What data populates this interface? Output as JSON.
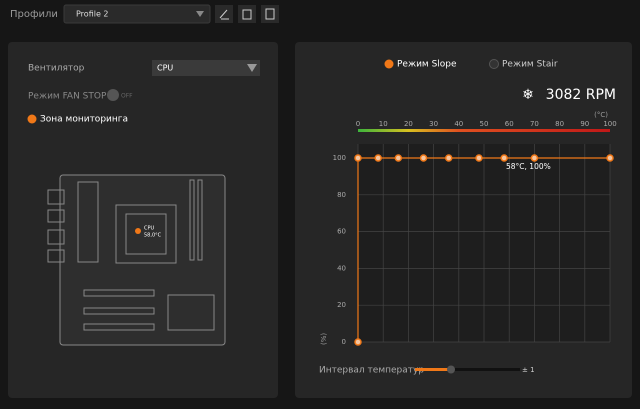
{
  "header": {
    "label": "Профили",
    "profile": "Profile 2"
  },
  "left_panel": {
    "fan_label": "Вентилятор",
    "fan_value": "CPU",
    "fan_stop_label": "Режим FAN STOP",
    "fan_stop_state": "OFF",
    "monitoring_zone": "Зона мониторинга",
    "board": {
      "sensor_label": "CPU",
      "sensor_temp": "58,0°C"
    }
  },
  "right_panel": {
    "modes": [
      "Режим Slope",
      "Режим Stair"
    ],
    "rpm": "3082 RPM",
    "chart": {
      "type": "line",
      "x_unit": "(°C)",
      "y_unit": "(%)",
      "x": [
        0,
        0,
        8,
        16,
        26,
        36,
        48,
        58,
        70,
        100
      ],
      "series": [
        {
          "color": "#f07818",
          "values": [
            0,
            100,
            100,
            100,
            100,
            100,
            100,
            100,
            100,
            100
          ]
        }
      ],
      "xlim": [
        0,
        100
      ],
      "ylim": [
        0,
        100
      ],
      "xticks": [
        0,
        10,
        20,
        30,
        40,
        50,
        60,
        70,
        80,
        90,
        100
      ],
      "yticks": [
        0,
        20,
        40,
        60,
        80,
        100
      ],
      "grid": true,
      "annotation": "58°C, 100%"
    },
    "interval_label": "Интервал температур",
    "interval_value": "± 1"
  }
}
